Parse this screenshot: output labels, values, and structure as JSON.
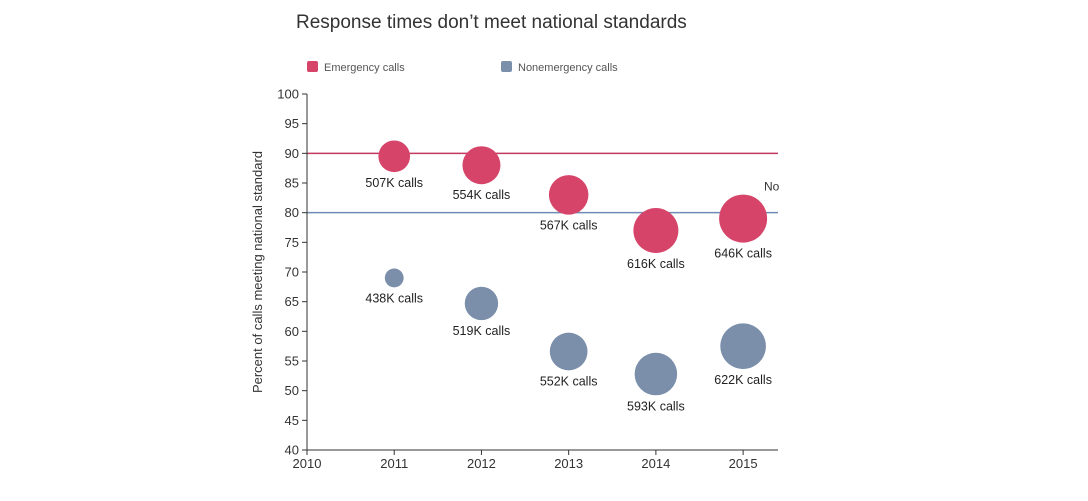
{
  "chart_data": {
    "type": "scatter",
    "title": "Response times don’t meet national standards",
    "xlabel": "",
    "ylabel": "Percent of calls meeting national standard",
    "xlim": [
      2010,
      2015.4
    ],
    "ylim": [
      40,
      100
    ],
    "x_ticks": [
      "2010",
      "2011",
      "2012",
      "2013",
      "2014",
      "2015"
    ],
    "y_ticks": [
      "40",
      "45",
      "50",
      "55",
      "60",
      "65",
      "70",
      "75",
      "80",
      "85",
      "90",
      "95",
      "100"
    ],
    "grid": false,
    "legend_position": "top-left",
    "series": [
      {
        "name": "Emergency calls",
        "color": "#d6446a",
        "points": [
          {
            "x": 2011,
            "y": 89.5,
            "calls_k": 507,
            "label": "507K calls"
          },
          {
            "x": 2012,
            "y": 88,
            "calls_k": 554,
            "label": "554K calls"
          },
          {
            "x": 2013,
            "y": 83,
            "calls_k": 567,
            "label": "567K calls"
          },
          {
            "x": 2014,
            "y": 77,
            "calls_k": 616,
            "label": "616K calls"
          },
          {
            "x": 2015,
            "y": 79,
            "calls_k": 646,
            "label": "646K calls"
          }
        ]
      },
      {
        "name": "Nonemergency calls",
        "color": "#7b8fab",
        "points": [
          {
            "x": 2011,
            "y": 69,
            "calls_k": 438,
            "label": "438K calls"
          },
          {
            "x": 2012,
            "y": 64.7,
            "calls_k": 519,
            "label": "519K calls"
          },
          {
            "x": 2013,
            "y": 56.6,
            "calls_k": 552,
            "label": "552K calls"
          },
          {
            "x": 2014,
            "y": 52.8,
            "calls_k": 593,
            "label": "593K calls"
          },
          {
            "x": 2015,
            "y": 57.5,
            "calls_k": 622,
            "label": "622K calls"
          }
        ]
      }
    ],
    "reference_lines": [
      {
        "y": 90,
        "color": "#c2385e",
        "label": ""
      },
      {
        "y": 80,
        "color": "#6f8db4",
        "label": "No"
      }
    ]
  }
}
